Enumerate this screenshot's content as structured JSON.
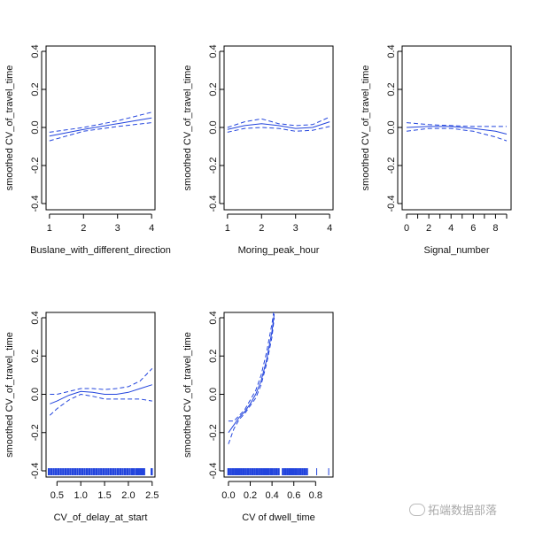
{
  "chart_data": [
    {
      "type": "line",
      "xlabel": "Buslane_with_different_direction",
      "ylabel": "smoothed CV_of_travel_time",
      "ylim": [
        -0.4,
        0.4
      ],
      "yticks": [
        -0.4,
        -0.2,
        0.0,
        0.2,
        0.4
      ],
      "ytick_labels": [
        "-0.4",
        "-0.2",
        "0.0",
        "0.2",
        "0.4"
      ],
      "xlim": [
        0.9,
        4.1
      ],
      "xticks": [
        1,
        2,
        3,
        4
      ],
      "xtick_labels": [
        "1",
        "2",
        "3",
        "4"
      ],
      "x": [
        1,
        2,
        3,
        4
      ],
      "fit": [
        -0.045,
        -0.01,
        0.02,
        0.05
      ],
      "upper": [
        -0.025,
        0,
        0.035,
        0.08
      ],
      "lower": [
        -0.07,
        -0.02,
        0.005,
        0.025
      ],
      "rug": []
    },
    {
      "type": "line",
      "xlabel": "Moring_peak_hour",
      "ylabel": "smoothed CV_of_travel_time",
      "ylim": [
        -0.4,
        0.4
      ],
      "yticks": [
        -0.4,
        -0.2,
        0.0,
        0.2,
        0.4
      ],
      "ytick_labels": [
        "-0.4",
        "-0.2",
        "0.0",
        "0.2",
        "0.4"
      ],
      "xlim": [
        0.9,
        4.1
      ],
      "xticks": [
        1,
        2,
        3,
        4
      ],
      "xtick_labels": [
        "1",
        "2",
        "3",
        "4"
      ],
      "x": [
        1,
        1.5,
        2,
        2.5,
        3,
        3.5,
        4
      ],
      "fit": [
        -0.01,
        0.01,
        0.02,
        0.01,
        -0.005,
        0,
        0.03
      ],
      "upper": [
        0,
        0.03,
        0.045,
        0.02,
        0.01,
        0.015,
        0.055
      ],
      "lower": [
        -0.025,
        -0.005,
        0,
        -0.005,
        -0.02,
        -0.015,
        0.005
      ],
      "rug": []
    },
    {
      "type": "line",
      "xlabel": "Signal_number",
      "ylabel": "smoothed CV_of_travel_time",
      "ylim": [
        -0.4,
        0.4
      ],
      "yticks": [
        -0.4,
        -0.2,
        0.0,
        0.2,
        0.4
      ],
      "ytick_labels": [
        "-0.4",
        "-0.2",
        "0.0",
        "0.2",
        "0.4"
      ],
      "xlim": [
        -0.4,
        9.4
      ],
      "xticks": [
        0,
        1,
        2,
        3,
        4,
        5,
        6,
        7,
        8,
        9
      ],
      "xtick_labels": [
        "0",
        "",
        "2",
        "",
        "4",
        "",
        "6",
        "",
        "8",
        ""
      ],
      "x": [
        0,
        2,
        4,
        6,
        8,
        9
      ],
      "fit": [
        0,
        0.005,
        0.005,
        -0.005,
        -0.02,
        -0.035
      ],
      "upper": [
        0.025,
        0.015,
        0.01,
        0.005,
        0.005,
        0.005
      ],
      "lower": [
        -0.02,
        -0.005,
        -0.005,
        -0.02,
        -0.05,
        -0.07
      ],
      "rug": []
    },
    {
      "type": "line",
      "xlabel": "CV_of_delay_at_start",
      "ylabel": "smoothed CV_of_travel_time",
      "ylim": [
        -0.4,
        0.4
      ],
      "yticks": [
        -0.4,
        -0.2,
        0.0,
        0.2,
        0.4
      ],
      "ytick_labels": [
        "-0.4",
        "-0.2",
        "0.0",
        "0.2",
        "0.4"
      ],
      "xlim": [
        0.27,
        2.56
      ],
      "xticks": [
        0.5,
        1.0,
        1.5,
        2.0,
        2.5
      ],
      "xtick_labels": [
        "0.5",
        "1.0",
        "1.5",
        "2.0",
        "2.5"
      ],
      "x": [
        0.35,
        0.5,
        0.75,
        1,
        1.25,
        1.5,
        1.75,
        2,
        2.25,
        2.5
      ],
      "fit": [
        -0.05,
        -0.035,
        -0.005,
        0.015,
        0.01,
        0,
        0,
        0.01,
        0.03,
        0.05
      ],
      "upper": [
        0,
        0,
        0.015,
        0.03,
        0.03,
        0.025,
        0.03,
        0.04,
        0.07,
        0.135
      ],
      "lower": [
        -0.11,
        -0.075,
        -0.03,
        0,
        -0.01,
        -0.025,
        -0.025,
        -0.025,
        -0.025,
        -0.035
      ],
      "rug": [
        0.33,
        0.38,
        0.43,
        0.48,
        0.53,
        0.58,
        0.63,
        0.68,
        0.73,
        0.78,
        0.83,
        0.88,
        0.93,
        0.98,
        1.03,
        1.08,
        1.13,
        1.18,
        1.23,
        1.28,
        1.33,
        1.38,
        1.43,
        1.48,
        1.53,
        1.58,
        1.63,
        1.68,
        1.73,
        1.78,
        1.83,
        1.88,
        1.93,
        1.98,
        2.03,
        2.08,
        2.12,
        2.17,
        2.21,
        2.25,
        2.29,
        2.33,
        2.49
      ]
    },
    {
      "type": "line",
      "xlabel": "CV of dwell_time",
      "ylabel": "smoothed CV_of_travel_time",
      "ylim": [
        -0.4,
        0.4
      ],
      "yticks": [
        -0.4,
        -0.2,
        0.0,
        0.2,
        0.4
      ],
      "ytick_labels": [
        "-0.4",
        "-0.2",
        "0.0",
        "0.2",
        "0.4"
      ],
      "xlim": [
        -0.04,
        0.96
      ],
      "xticks": [
        0,
        0.2,
        0.4,
        0.6,
        0.8
      ],
      "xtick_labels": [
        "0.0",
        "0.2",
        "0.4",
        "0.6",
        "0.8"
      ],
      "x": [
        0,
        0.05,
        0.1,
        0.15,
        0.2,
        0.25,
        0.3,
        0.35,
        0.4,
        0.42
      ],
      "fit": [
        -0.2,
        -0.16,
        -0.12,
        -0.09,
        -0.05,
        0,
        0.07,
        0.18,
        0.33,
        0.42
      ],
      "upper": [
        -0.14,
        -0.14,
        -0.11,
        -0.08,
        -0.03,
        0.02,
        0.1,
        0.22,
        0.37,
        0.45
      ],
      "lower": [
        -0.26,
        -0.18,
        -0.13,
        -0.1,
        -0.06,
        -0.02,
        0.05,
        0.16,
        0.3,
        0.4
      ],
      "rug": [
        0,
        0.02,
        0.04,
        0.06,
        0.08,
        0.1,
        0.12,
        0.14,
        0.16,
        0.18,
        0.2,
        0.22,
        0.24,
        0.26,
        0.28,
        0.3,
        0.32,
        0.34,
        0.36,
        0.37,
        0.39,
        0.4,
        0.42,
        0.44,
        0.46,
        0.5,
        0.52,
        0.54,
        0.56,
        0.58,
        0.6,
        0.62,
        0.64,
        0.66,
        0.68,
        0.7,
        0.72,
        0.81,
        0.92
      ]
    }
  ],
  "colors": {
    "line": "#2244dd",
    "axis": "#000000"
  },
  "watermark": "拓端数据部落"
}
